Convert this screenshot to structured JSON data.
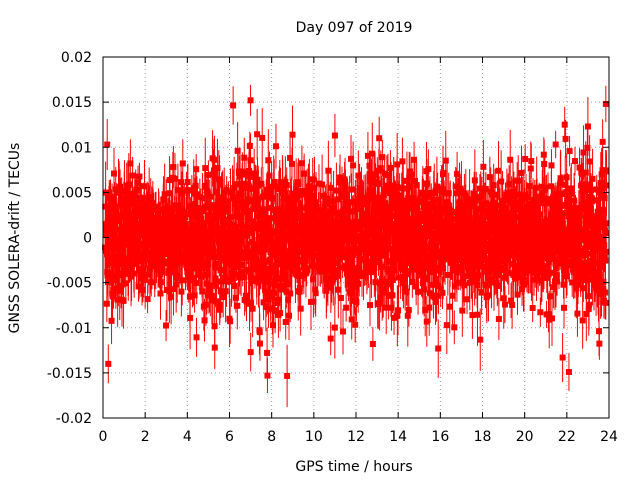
{
  "chart_data": {
    "type": "scatter",
    "title": "Day 097 of 2019",
    "xlabel": "GPS time / hours",
    "ylabel": "GNSS SOLERA-drift / TECUs",
    "xlim": [
      0,
      24
    ],
    "ylim": [
      -0.02,
      0.02
    ],
    "x_ticks": [
      0,
      2,
      4,
      6,
      8,
      10,
      12,
      14,
      16,
      18,
      20,
      22,
      24
    ],
    "y_ticks": [
      -0.02,
      -0.015,
      -0.01,
      -0.005,
      0,
      0.005,
      0.01,
      0.015,
      0.02
    ],
    "x_tick_labels": [
      "0",
      "2",
      "4",
      "6",
      "8",
      "10",
      "12",
      "14",
      "16",
      "18",
      "20",
      "22",
      "24"
    ],
    "y_tick_labels": [
      "-0.02",
      "-0.015",
      "-0.01",
      "-0.005",
      "0",
      "0.005",
      "0.01",
      "0.015",
      "0.02"
    ],
    "grid": true,
    "series": [
      {
        "name": "SOLERA-drift",
        "color": "#ff0000",
        "marker": "square",
        "error_bars": true,
        "n_points": 2880,
        "x_step_hours": 0.00833,
        "noise_sigma_by_hour": [
          0.0036,
          0.0034,
          0.003,
          0.0028,
          0.003,
          0.0036,
          0.0044,
          0.0048,
          0.0044,
          0.0036,
          0.0034,
          0.0035,
          0.0037,
          0.004,
          0.004,
          0.0037,
          0.0033,
          0.0031,
          0.003,
          0.0031,
          0.0032,
          0.0034,
          0.0037,
          0.0038,
          0.004
        ],
        "error_bar_half_width": 0.0025,
        "notable_points": [
          {
            "x": 0.25,
            "y": -0.014
          },
          {
            "x": 0.2,
            "y": 0.0103
          },
          {
            "x": 5.3,
            "y": -0.0122
          },
          {
            "x": 7.0,
            "y": 0.0152
          },
          {
            "x": 7.8,
            "y": -0.0153
          },
          {
            "x": 10.8,
            "y": -0.0112
          },
          {
            "x": 11.0,
            "y": 0.0113
          },
          {
            "x": 12.8,
            "y": -0.0118
          },
          {
            "x": 13.1,
            "y": 0.011
          },
          {
            "x": 15.9,
            "y": -0.0123
          },
          {
            "x": 21.8,
            "y": -0.0133
          },
          {
            "x": 21.9,
            "y": 0.0125
          },
          {
            "x": 22.1,
            "y": -0.0149
          },
          {
            "x": 23.0,
            "y": 0.0123
          },
          {
            "x": 23.7,
            "y": 0.0106
          },
          {
            "x": 23.85,
            "y": 0.0148
          }
        ]
      }
    ]
  }
}
